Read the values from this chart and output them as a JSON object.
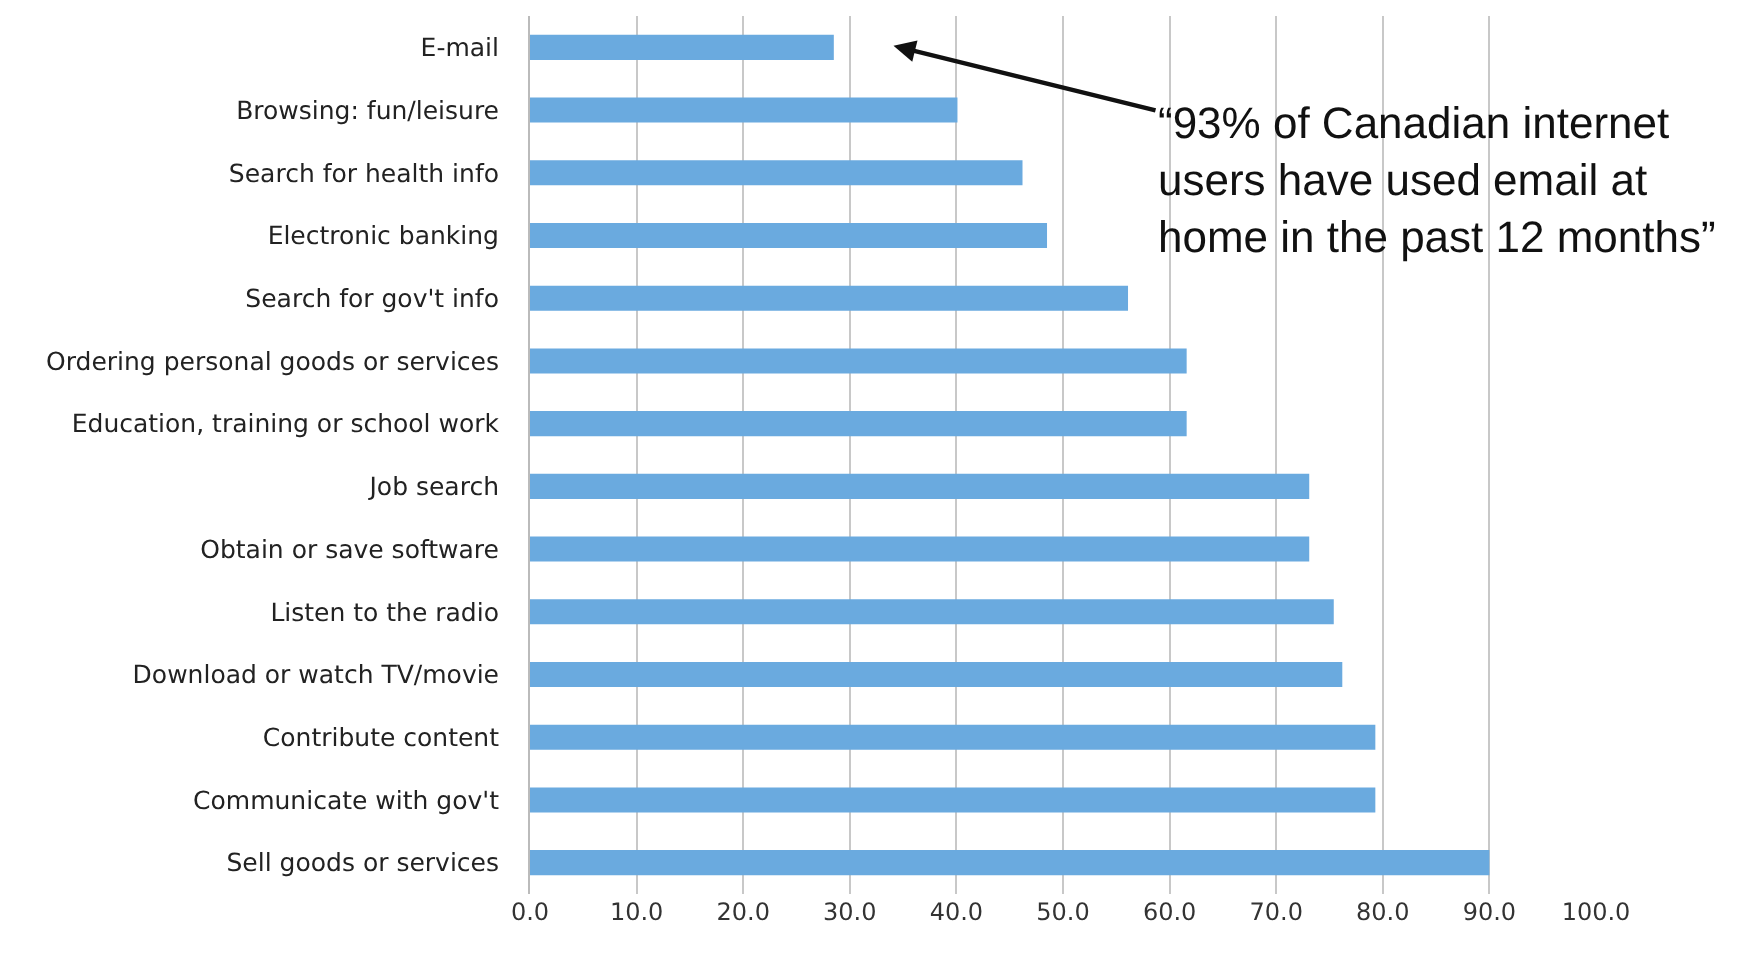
{
  "chart_data": {
    "type": "bar",
    "orientation": "horizontal",
    "categories": [
      "E-mail",
      "Browsing: fun/leisure",
      "Search for health info",
      "Electronic banking",
      "Search for gov't info",
      "Ordering personal goods or services",
      "Education, training or school work",
      "Job search",
      "Obtain or save software",
      "Listen to the radio",
      "Download or watch TV/movie",
      "Contribute content",
      "Communicate with gov't",
      "Sell goods or services"
    ],
    "values": [
      28.5,
      40.1,
      46.2,
      48.5,
      56.1,
      61.6,
      61.6,
      73.1,
      73.1,
      75.4,
      76.2,
      79.3,
      79.3,
      90.0
    ],
    "color": "#6aaadf",
    "xlim": [
      0,
      100
    ],
    "xticks": [
      {
        "value": 0,
        "label": "0.0"
      },
      {
        "value": 10,
        "label": "10.0"
      },
      {
        "value": 20,
        "label": "20.0"
      },
      {
        "value": 30,
        "label": "30.0"
      },
      {
        "value": 40,
        "label": "40.0"
      },
      {
        "value": 50,
        "label": "50.0"
      },
      {
        "value": 60,
        "label": "60.0"
      },
      {
        "value": 70,
        "label": "70.0"
      },
      {
        "value": 80,
        "label": "80.0"
      },
      {
        "value": 90,
        "label": "90.0"
      },
      {
        "value": 100,
        "label": "100.0"
      }
    ],
    "grid": "x",
    "annotations": [
      "“93% of Canadian internet\nusers have used email at\nhome in the past 12 months”"
    ]
  }
}
